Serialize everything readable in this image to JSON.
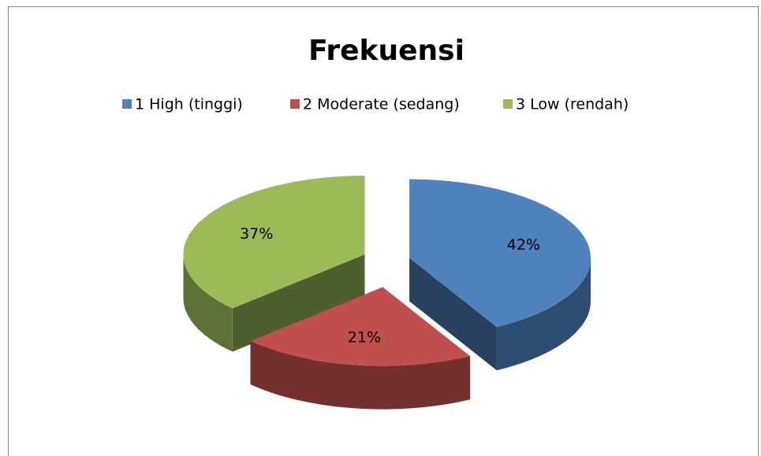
{
  "chart_data": {
    "type": "pie",
    "title": "Frekuensi",
    "categories": [
      "1 High (tinggi)",
      "2 Moderate (sedang)",
      "3 Low (rendah)"
    ],
    "values": [
      42,
      21,
      37
    ],
    "value_labels": [
      "42%",
      "21%",
      "37%"
    ],
    "colors": [
      "#4f81bd",
      "#c0504d",
      "#9bbb59"
    ],
    "legend": "top"
  }
}
